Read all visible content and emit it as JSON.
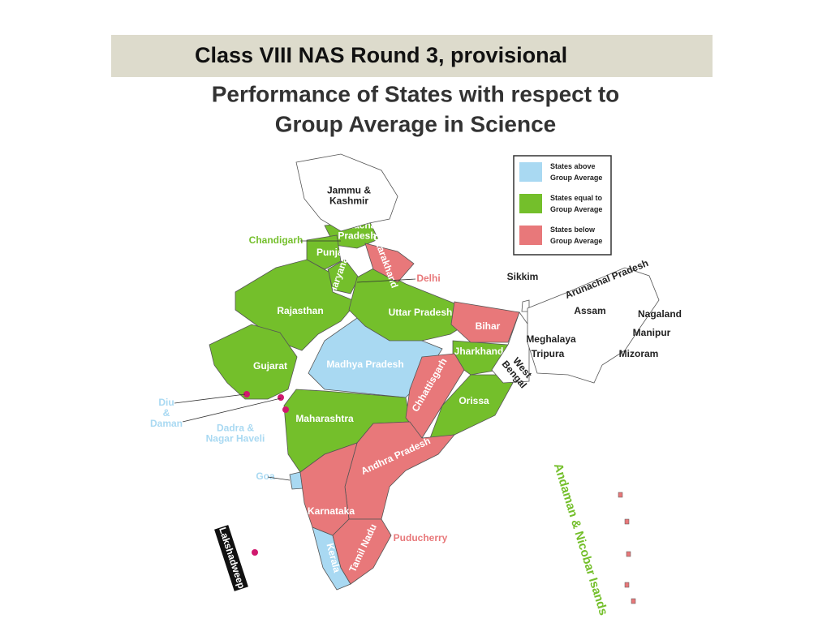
{
  "header": {
    "title": "Class VIII NAS Round 3, provisional"
  },
  "map": {
    "title_lines": [
      "Performance of States with respect to",
      "Group Average in Science"
    ],
    "legend": [
      {
        "label_lines": [
          "States above",
          "Group Average"
        ],
        "color": "#a9d9f2",
        "regions": [
          {
            "lines": [
              "Madhya Pradesh"
            ]
          },
          {
            "lines": [
              "Kerala"
            ]
          },
          {
            "lines": [
              "Goa"
            ]
          },
          {
            "lines": [
              "Diu",
              "&",
              "Daman"
            ]
          },
          {
            "lines": [
              "Dadra &",
              "Nagar Haveli"
            ]
          }
        ]
      },
      {
        "label_lines": [
          "States equal to",
          "Group Average"
        ],
        "color": "#74bf2b",
        "regions": [
          {
            "lines": [
              "Himachal",
              "Pradesh"
            ]
          },
          {
            "lines": [
              "Punjab"
            ]
          },
          {
            "lines": [
              "Haryana"
            ]
          },
          {
            "lines": [
              "Rajasthan"
            ]
          },
          {
            "lines": [
              "Uttar Pradesh"
            ]
          },
          {
            "lines": [
              "Gujarat"
            ]
          },
          {
            "lines": [
              "Jharkhand"
            ]
          },
          {
            "lines": [
              "Orissa"
            ]
          },
          {
            "lines": [
              "Maharashtra"
            ]
          },
          {
            "lines": [
              "Chandigarh"
            ]
          },
          {
            "lines": [
              "Andaman & Nicobar Isands"
            ]
          }
        ]
      },
      {
        "label_lines": [
          "States below",
          "Group Average"
        ],
        "color": "#e8787a",
        "regions": [
          {
            "lines": [
              "Uttarakhand"
            ]
          },
          {
            "lines": [
              "Bihar"
            ]
          },
          {
            "lines": [
              "Chhattisgarh"
            ]
          },
          {
            "lines": [
              "Andhra Pradesh"
            ]
          },
          {
            "lines": [
              "Karnataka"
            ]
          },
          {
            "lines": [
              "Tamil Nadu"
            ]
          },
          {
            "lines": [
              "Delhi"
            ]
          },
          {
            "lines": [
              "Puducherry"
            ]
          }
        ]
      }
    ],
    "other_regions": [
      {
        "lines": [
          "Jammu &",
          "Kashmir"
        ]
      },
      {
        "lines": [
          "West",
          "Bengal"
        ]
      },
      {
        "lines": [
          "Sikkim"
        ]
      },
      {
        "lines": [
          "Arunachal Pradesh"
        ]
      },
      {
        "lines": [
          "Assam"
        ]
      },
      {
        "lines": [
          "Nagaland"
        ]
      },
      {
        "lines": [
          "Manipur"
        ]
      },
      {
        "lines": [
          "Meghalaya"
        ]
      },
      {
        "lines": [
          "Tripura"
        ]
      },
      {
        "lines": [
          "Mizoram"
        ]
      },
      {
        "lines": [
          "Lakshadweep"
        ]
      }
    ]
  }
}
